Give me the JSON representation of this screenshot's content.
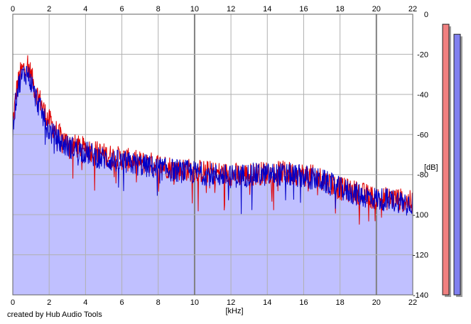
{
  "chart_data": {
    "type": "area",
    "title": "",
    "xlabel": "[kHz]",
    "ylabel": "[dB]",
    "xlim": [
      0,
      22
    ],
    "ylim": [
      -140,
      0
    ],
    "x_ticks": [
      "0",
      "2",
      "4",
      "6",
      "8",
      "10",
      "12",
      "14",
      "16",
      "18",
      "20",
      "22"
    ],
    "y_ticks": [
      "0",
      "-20",
      "-40",
      "-60",
      "-80",
      "-100",
      "-120",
      "-140"
    ],
    "grid": true,
    "colors": {
      "channel_red": "#e00000",
      "channel_blue": "#0000c8",
      "fill": "#c0c0ff",
      "grid": "#b0b0b0",
      "major_grid": "#808080",
      "meter_red": "#f08080",
      "meter_blue": "#8080f0"
    },
    "series": [
      {
        "color_key": "channel_red",
        "x": [
          0,
          0.2,
          0.4,
          0.6,
          0.8,
          1.0,
          1.2,
          1.5,
          1.8,
          2.0,
          2.5,
          3.0,
          3.5,
          4.0,
          5.0,
          6.0,
          7.0,
          8.0,
          9.0,
          10.0,
          11.0,
          12.0,
          13.0,
          14.0,
          15.0,
          16.0,
          17.0,
          18.0,
          19.0,
          20.0,
          21.0,
          22.0
        ],
        "values": [
          -55,
          -38,
          -30,
          -27,
          -24,
          -30,
          -37,
          -43,
          -50,
          -53,
          -60,
          -64,
          -66,
          -67,
          -70,
          -72,
          -74,
          -75,
          -77,
          -78,
          -79,
          -80,
          -80,
          -79,
          -79,
          -80,
          -82,
          -87,
          -89,
          -92,
          -92,
          -94
        ]
      },
      {
        "color_key": "channel_blue",
        "x": [
          0,
          0.2,
          0.4,
          0.6,
          0.8,
          1.0,
          1.2,
          1.5,
          1.8,
          2.0,
          2.5,
          3.0,
          3.5,
          4.0,
          5.0,
          6.0,
          7.0,
          8.0,
          9.0,
          10.0,
          11.0,
          12.0,
          13.0,
          14.0,
          15.0,
          16.0,
          17.0,
          18.0,
          19.0,
          20.0,
          21.0,
          22.0
        ],
        "values": [
          -57,
          -40,
          -33,
          -30,
          -29,
          -34,
          -40,
          -47,
          -54,
          -58,
          -63,
          -66,
          -67,
          -69,
          -72,
          -74,
          -75,
          -77,
          -78,
          -79,
          -80,
          -81,
          -80,
          -80,
          -80,
          -81,
          -83,
          -87,
          -90,
          -92,
          -93,
          -94
        ]
      }
    ],
    "level_meters": [
      {
        "color_key": "meter_red",
        "value": -5
      },
      {
        "color_key": "meter_blue",
        "value": -10
      }
    ]
  },
  "footer": {
    "credit": "created by Hub Audio Tools"
  }
}
